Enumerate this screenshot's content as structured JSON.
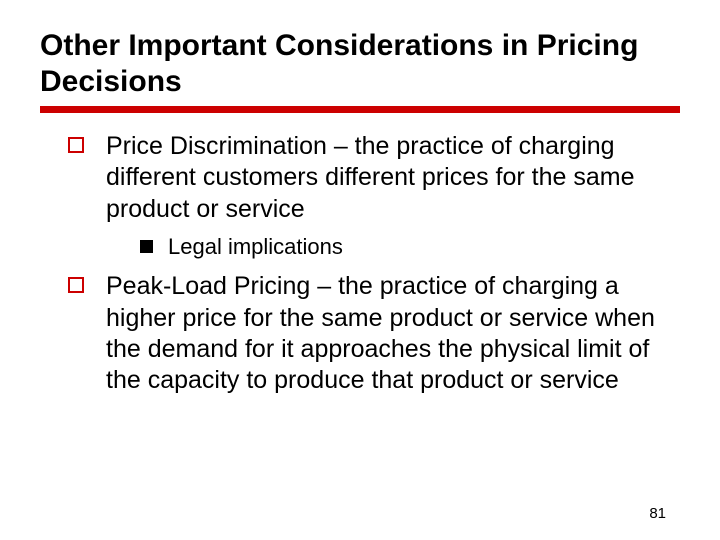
{
  "slide": {
    "title": "Other Important Considerations in Pricing Decisions",
    "page_number": "81",
    "colors": {
      "rule": "#cc0000",
      "text": "#000000",
      "bullet_outline": "#cc0000",
      "sub_bullet_fill": "#000000",
      "background": "#ffffff"
    },
    "bullets": [
      {
        "text": "Price Discrimination – the practice of charging different customers different prices for the same product or service",
        "sub_bullets": [
          {
            "text": "Legal implications"
          }
        ]
      },
      {
        "text": "Peak-Load Pricing – the practice of charging a higher price for the same product or service when the demand for it approaches the physical limit of the capacity to produce that product or service",
        "sub_bullets": []
      }
    ]
  }
}
